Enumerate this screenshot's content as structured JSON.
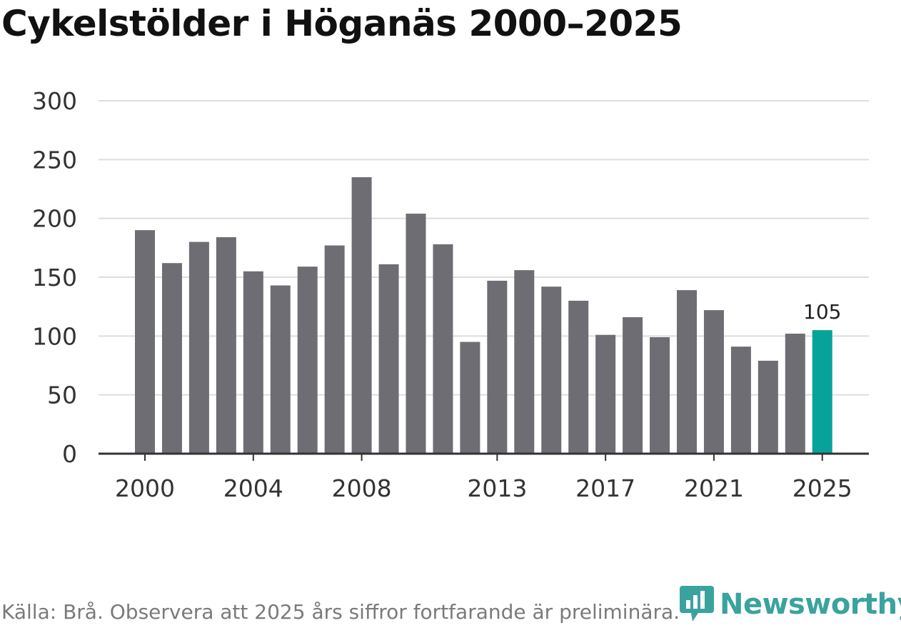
{
  "chart_data": {
    "type": "bar",
    "title": "Cykelstölder i Höganäs 2000–2025",
    "xlabel": "",
    "ylabel": "",
    "ylim": [
      0,
      300
    ],
    "yticks": [
      0,
      50,
      100,
      150,
      200,
      250,
      300
    ],
    "xtick_labels": [
      "2000",
      "2004",
      "2008",
      "2013",
      "2017",
      "2021",
      "2025"
    ],
    "categories": [
      "2000",
      "2001",
      "2002",
      "2003",
      "2004",
      "2005",
      "2006",
      "2007",
      "2008",
      "2009",
      "2010",
      "2011",
      "2012",
      "2013",
      "2014",
      "2015",
      "2016",
      "2017",
      "2018",
      "2019",
      "2020",
      "2021",
      "2022",
      "2023",
      "2024",
      "2025"
    ],
    "values": [
      190,
      162,
      180,
      184,
      155,
      143,
      159,
      177,
      235,
      161,
      204,
      178,
      95,
      147,
      156,
      142,
      130,
      101,
      116,
      99,
      139,
      122,
      91,
      79,
      102,
      105
    ],
    "annotation": {
      "category": "2025",
      "label": "105"
    },
    "grid": true,
    "colors": {
      "bar": "#6e6d73",
      "highlight": "#07a39a",
      "grid": "#dddddd",
      "axis": "#333333"
    }
  },
  "source_text": "Källa: Brå. Observera att 2025 års siffror fortfarande är preliminära.",
  "brand": {
    "name": "Newsworthy",
    "icon": "newsworthy-logo-icon",
    "color": "#3aa39e"
  }
}
